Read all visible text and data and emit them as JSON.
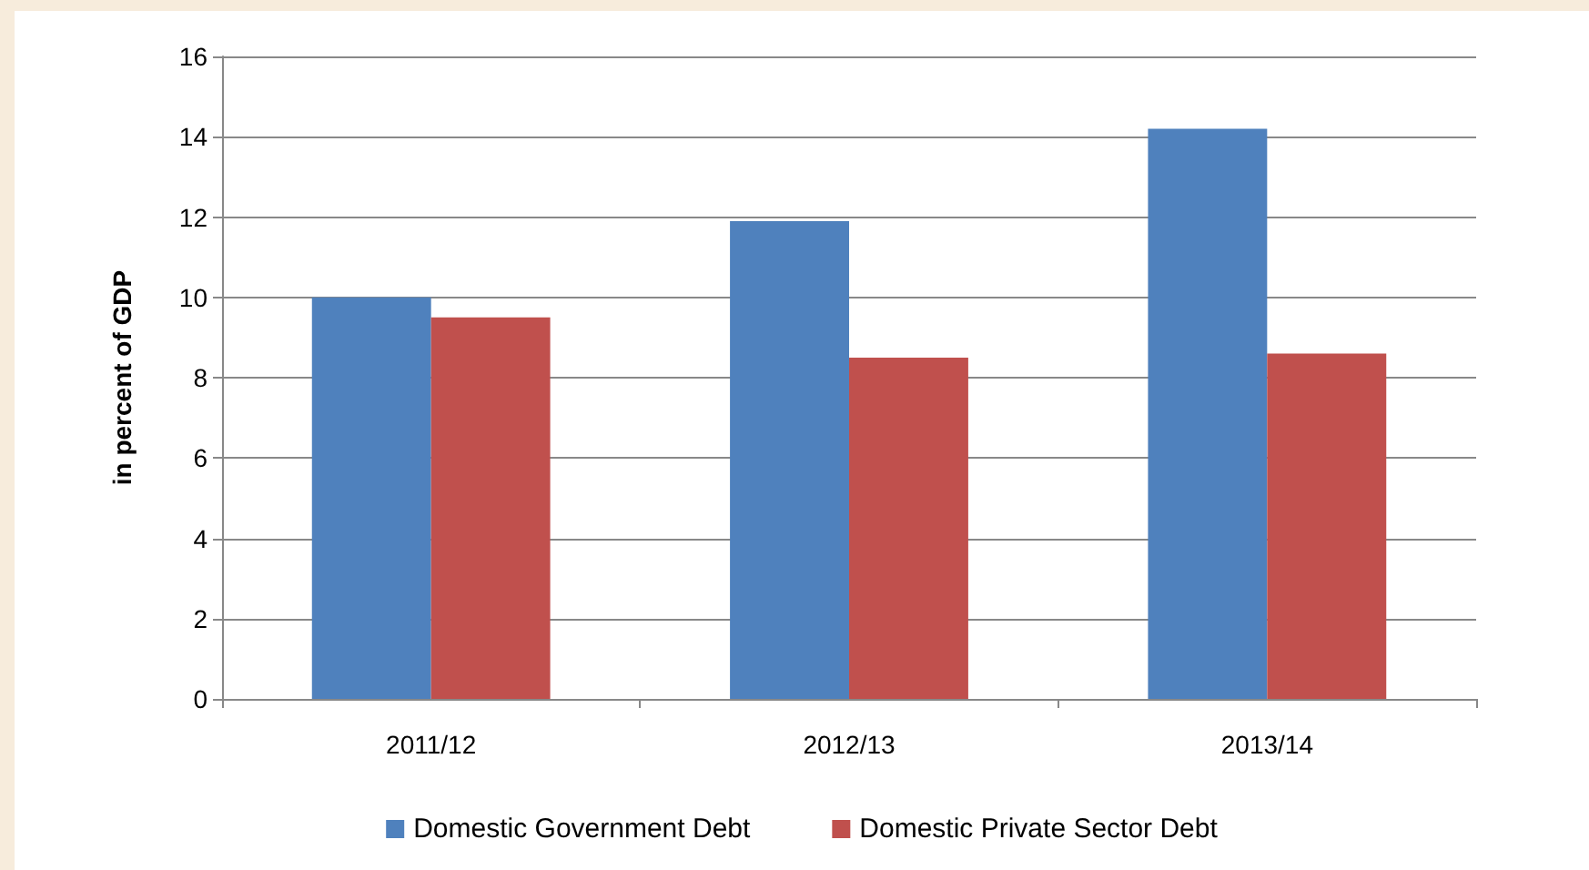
{
  "chart_data": {
    "type": "bar",
    "ylabel": "in percent of GDP",
    "categories": [
      "2011/12",
      "2012/13",
      "2013/14"
    ],
    "series": [
      {
        "name": "Domestic Government Debt",
        "color": "#4f81bd",
        "values": [
          10.0,
          11.9,
          14.2
        ]
      },
      {
        "name": "Domestic Private Sector Debt",
        "color": "#c0504d",
        "values": [
          9.5,
          8.5,
          8.6
        ]
      }
    ],
    "ylim": [
      0,
      16
    ],
    "yticks": [
      0,
      2,
      4,
      6,
      8,
      10,
      12,
      14,
      16
    ],
    "grid": "y",
    "legend": "bottom"
  }
}
